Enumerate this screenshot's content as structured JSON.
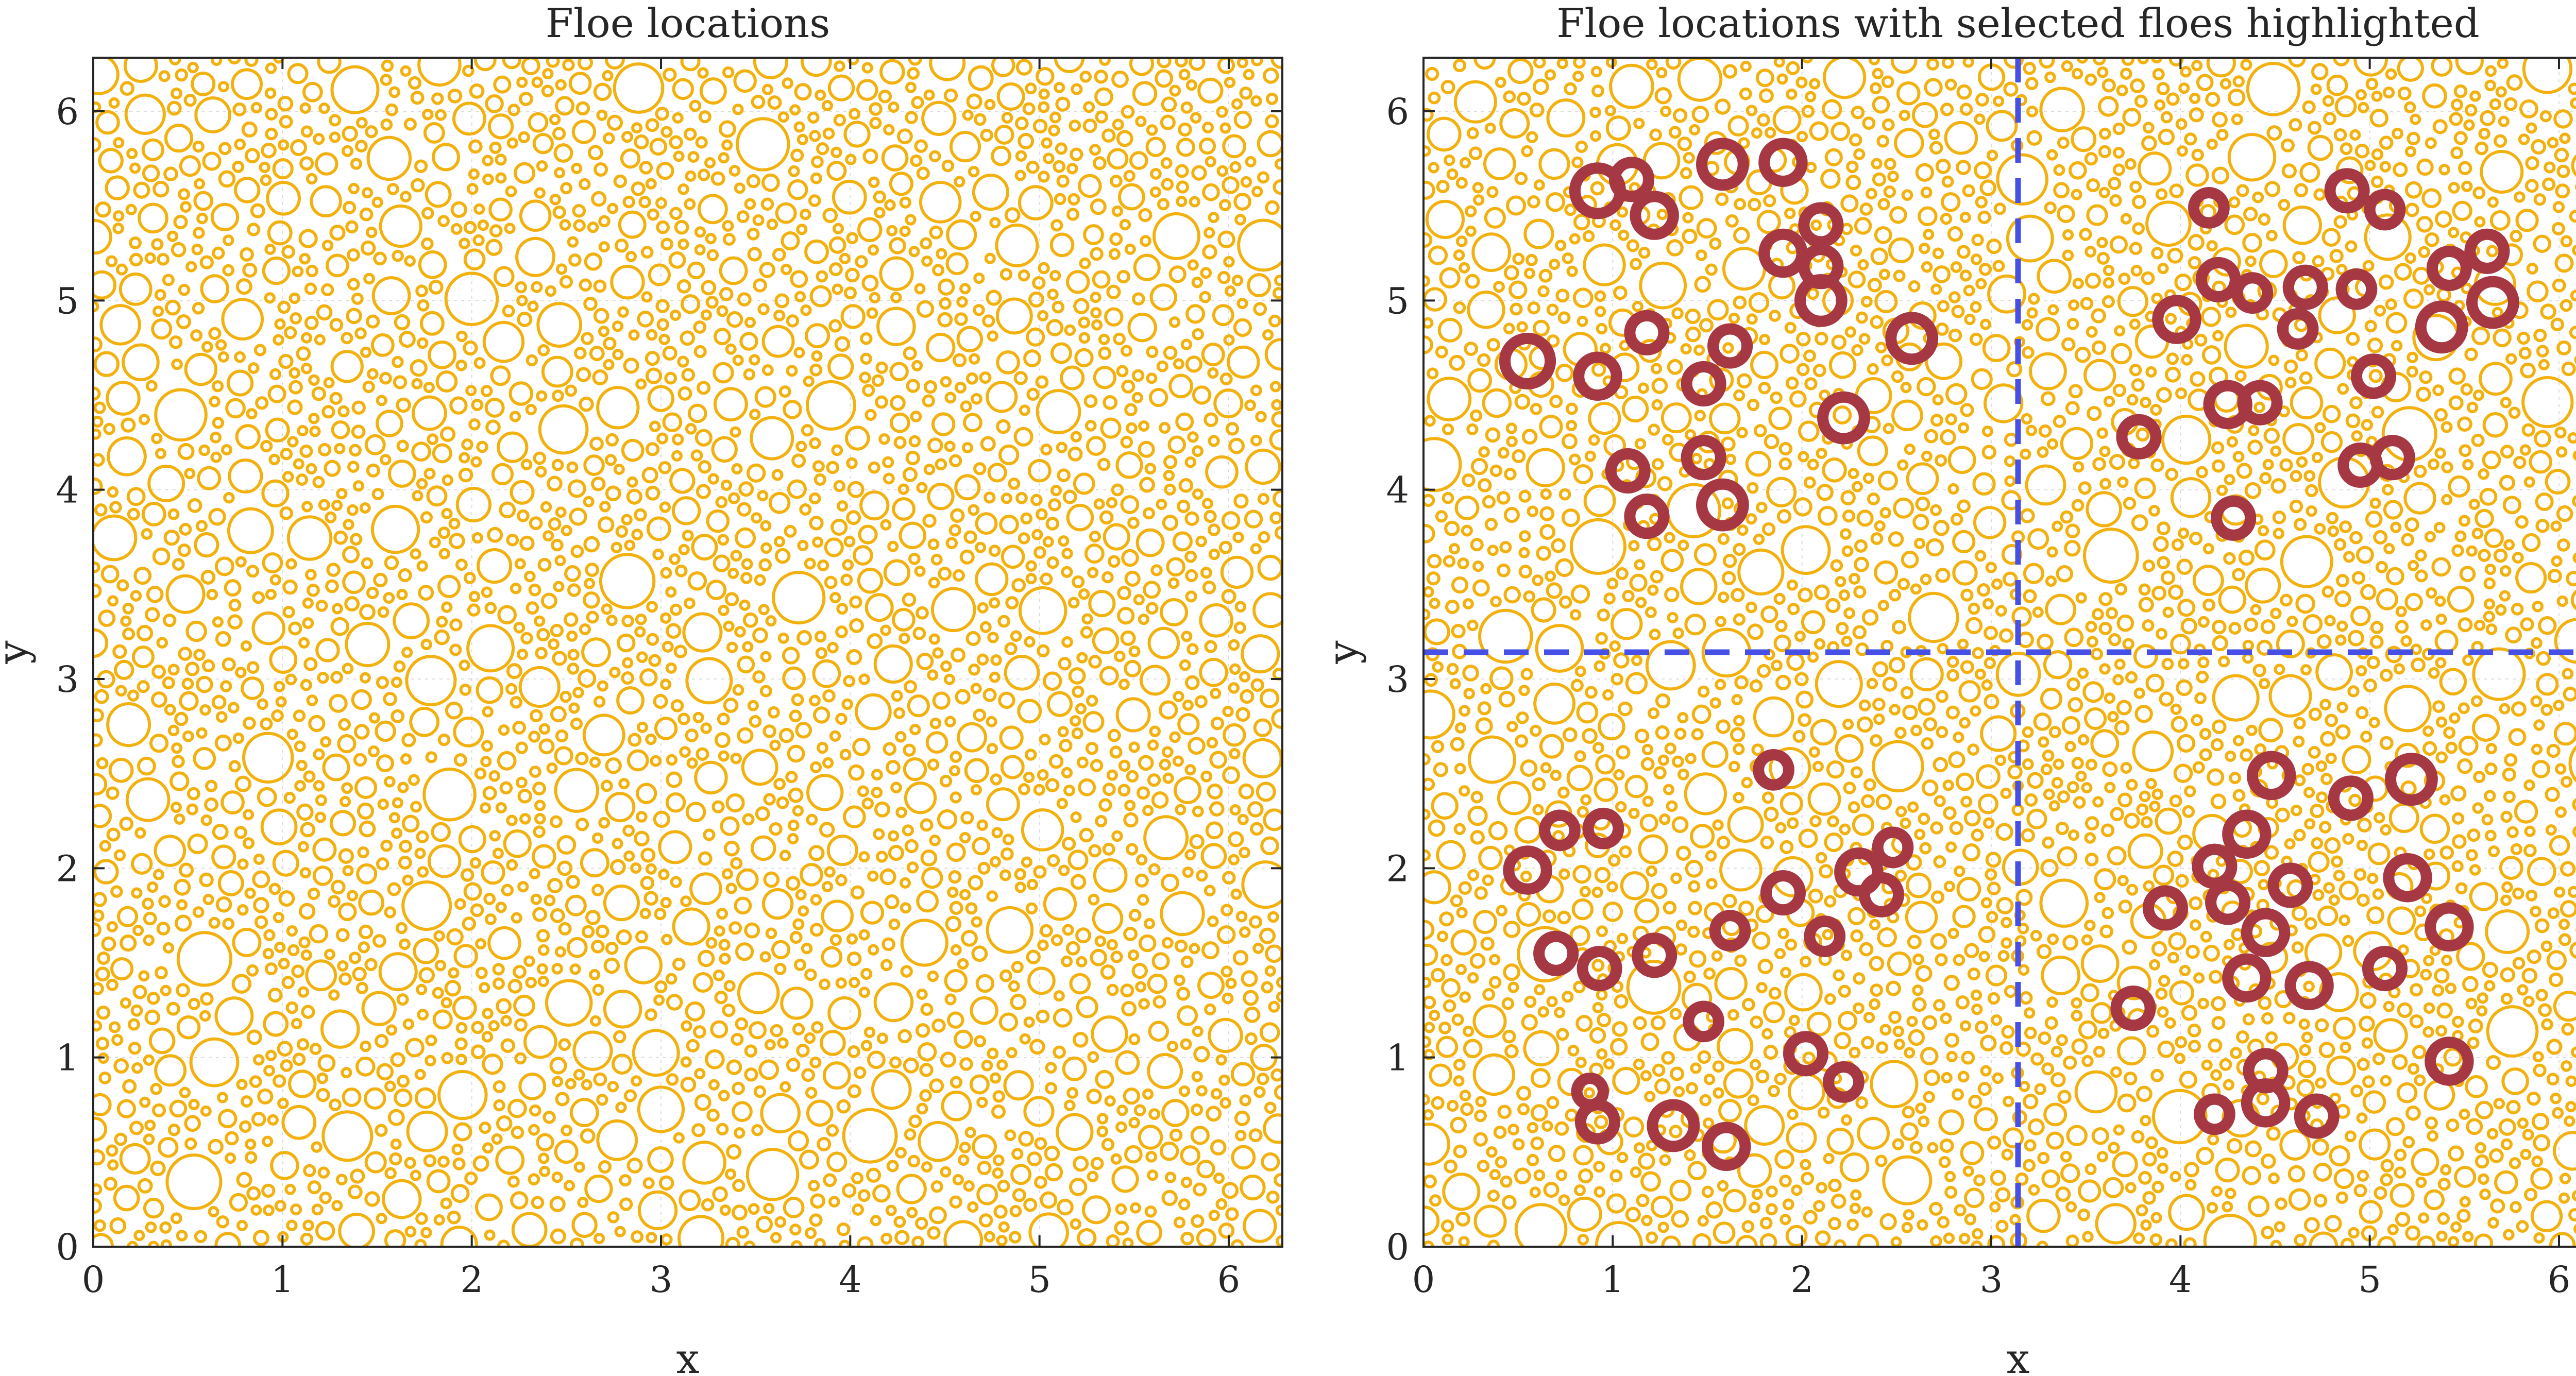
{
  "chart_data": [
    {
      "type": "scatter",
      "marker": "circle",
      "title": "Floe locations",
      "xlabel": "x",
      "ylabel": "y",
      "xlim": [
        0,
        6.2832
      ],
      "ylim": [
        0,
        6.2832
      ],
      "xticks": [
        0,
        1,
        2,
        3,
        4,
        5,
        6
      ],
      "yticks": [
        0,
        1,
        2,
        3,
        4,
        5,
        6
      ],
      "grid": true,
      "floe_color": "#f2b10f",
      "floes": {
        "description": "approx. 3000 non-overlapping floes uniformly distributed over the domain",
        "count": 3000,
        "radius_range": [
          0.03,
          0.15
        ]
      }
    },
    {
      "type": "scatter",
      "marker": "circle",
      "title": "Floe locations with selected floes highlighted",
      "xlabel": "x",
      "ylabel": "y",
      "xlim": [
        0,
        6.2832
      ],
      "ylim": [
        0,
        6.2832
      ],
      "xticks": [
        0,
        1,
        2,
        3,
        4,
        5,
        6
      ],
      "yticks": [
        0,
        1,
        2,
        3,
        4,
        5,
        6
      ],
      "grid": true,
      "floe_color": "#f2b10f",
      "selected_color": "#a63844",
      "divider_color": "#4750e6",
      "dividers": {
        "x": 3.1416,
        "y": 3.1416,
        "style": "dashed"
      },
      "selected_floes": [
        {
          "x": 0.92,
          "y": 5.58,
          "r": 0.12
        },
        {
          "x": 1.1,
          "y": 5.64,
          "r": 0.09
        },
        {
          "x": 1.22,
          "y": 5.45,
          "r": 0.1
        },
        {
          "x": 1.58,
          "y": 5.72,
          "r": 0.11
        },
        {
          "x": 1.9,
          "y": 5.73,
          "r": 0.1
        },
        {
          "x": 2.1,
          "y": 5.4,
          "r": 0.09
        },
        {
          "x": 1.9,
          "y": 5.25,
          "r": 0.1
        },
        {
          "x": 2.1,
          "y": 5.18,
          "r": 0.09
        },
        {
          "x": 2.1,
          "y": 5.0,
          "r": 0.11
        },
        {
          "x": 2.58,
          "y": 4.8,
          "r": 0.11
        },
        {
          "x": 0.55,
          "y": 4.68,
          "r": 0.12
        },
        {
          "x": 0.92,
          "y": 4.6,
          "r": 0.1
        },
        {
          "x": 1.18,
          "y": 4.83,
          "r": 0.09
        },
        {
          "x": 1.62,
          "y": 4.76,
          "r": 0.09
        },
        {
          "x": 1.48,
          "y": 4.56,
          "r": 0.09
        },
        {
          "x": 2.22,
          "y": 4.38,
          "r": 0.11
        },
        {
          "x": 1.08,
          "y": 4.1,
          "r": 0.09
        },
        {
          "x": 1.48,
          "y": 4.17,
          "r": 0.09
        },
        {
          "x": 1.18,
          "y": 3.86,
          "r": 0.09
        },
        {
          "x": 1.58,
          "y": 3.92,
          "r": 0.11
        },
        {
          "x": 4.15,
          "y": 5.49,
          "r": 0.08
        },
        {
          "x": 4.88,
          "y": 5.58,
          "r": 0.09
        },
        {
          "x": 5.08,
          "y": 5.48,
          "r": 0.08
        },
        {
          "x": 5.62,
          "y": 5.26,
          "r": 0.09
        },
        {
          "x": 5.42,
          "y": 5.17,
          "r": 0.09
        },
        {
          "x": 4.2,
          "y": 5.11,
          "r": 0.09
        },
        {
          "x": 4.38,
          "y": 5.04,
          "r": 0.08
        },
        {
          "x": 4.66,
          "y": 5.07,
          "r": 0.09
        },
        {
          "x": 4.93,
          "y": 5.06,
          "r": 0.08
        },
        {
          "x": 5.65,
          "y": 4.99,
          "r": 0.11
        },
        {
          "x": 3.98,
          "y": 4.9,
          "r": 0.1
        },
        {
          "x": 4.62,
          "y": 4.85,
          "r": 0.08
        },
        {
          "x": 5.38,
          "y": 4.86,
          "r": 0.11
        },
        {
          "x": 5.02,
          "y": 4.6,
          "r": 0.09
        },
        {
          "x": 4.25,
          "y": 4.45,
          "r": 0.1
        },
        {
          "x": 4.42,
          "y": 4.46,
          "r": 0.09
        },
        {
          "x": 3.78,
          "y": 4.28,
          "r": 0.09
        },
        {
          "x": 4.95,
          "y": 4.13,
          "r": 0.09
        },
        {
          "x": 5.12,
          "y": 4.17,
          "r": 0.09
        },
        {
          "x": 4.28,
          "y": 3.85,
          "r": 0.09
        },
        {
          "x": 1.85,
          "y": 2.52,
          "r": 0.08
        },
        {
          "x": 0.72,
          "y": 2.2,
          "r": 0.08
        },
        {
          "x": 0.95,
          "y": 2.21,
          "r": 0.08
        },
        {
          "x": 2.48,
          "y": 2.11,
          "r": 0.08
        },
        {
          "x": 0.55,
          "y": 1.99,
          "r": 0.1
        },
        {
          "x": 2.3,
          "y": 1.98,
          "r": 0.1
        },
        {
          "x": 2.42,
          "y": 1.86,
          "r": 0.09
        },
        {
          "x": 1.9,
          "y": 1.87,
          "r": 0.09
        },
        {
          "x": 1.62,
          "y": 1.67,
          "r": 0.08
        },
        {
          "x": 2.12,
          "y": 1.64,
          "r": 0.08
        },
        {
          "x": 0.7,
          "y": 1.55,
          "r": 0.09
        },
        {
          "x": 0.93,
          "y": 1.47,
          "r": 0.09
        },
        {
          "x": 1.22,
          "y": 1.54,
          "r": 0.09
        },
        {
          "x": 1.48,
          "y": 1.19,
          "r": 0.08
        },
        {
          "x": 2.02,
          "y": 1.02,
          "r": 0.09
        },
        {
          "x": 2.22,
          "y": 0.87,
          "r": 0.08
        },
        {
          "x": 0.88,
          "y": 0.82,
          "r": 0.07
        },
        {
          "x": 0.92,
          "y": 0.66,
          "r": 0.09
        },
        {
          "x": 1.32,
          "y": 0.64,
          "r": 0.11
        },
        {
          "x": 1.6,
          "y": 0.53,
          "r": 0.1
        },
        {
          "x": 4.48,
          "y": 2.49,
          "r": 0.1
        },
        {
          "x": 5.22,
          "y": 2.47,
          "r": 0.11
        },
        {
          "x": 4.9,
          "y": 2.37,
          "r": 0.09
        },
        {
          "x": 4.35,
          "y": 2.18,
          "r": 0.1
        },
        {
          "x": 4.18,
          "y": 2.01,
          "r": 0.09
        },
        {
          "x": 5.2,
          "y": 1.95,
          "r": 0.1
        },
        {
          "x": 4.58,
          "y": 1.91,
          "r": 0.09
        },
        {
          "x": 4.25,
          "y": 1.82,
          "r": 0.09
        },
        {
          "x": 3.92,
          "y": 1.79,
          "r": 0.09
        },
        {
          "x": 4.45,
          "y": 1.66,
          "r": 0.1
        },
        {
          "x": 5.42,
          "y": 1.69,
          "r": 0.1
        },
        {
          "x": 4.35,
          "y": 1.42,
          "r": 0.1
        },
        {
          "x": 4.68,
          "y": 1.38,
          "r": 0.1
        },
        {
          "x": 5.08,
          "y": 1.47,
          "r": 0.09
        },
        {
          "x": 3.75,
          "y": 1.26,
          "r": 0.09
        },
        {
          "x": 5.42,
          "y": 0.98,
          "r": 0.1
        },
        {
          "x": 4.45,
          "y": 0.93,
          "r": 0.09
        },
        {
          "x": 4.45,
          "y": 0.76,
          "r": 0.1
        },
        {
          "x": 4.18,
          "y": 0.7,
          "r": 0.08
        },
        {
          "x": 4.72,
          "y": 0.69,
          "r": 0.09
        }
      ]
    }
  ]
}
